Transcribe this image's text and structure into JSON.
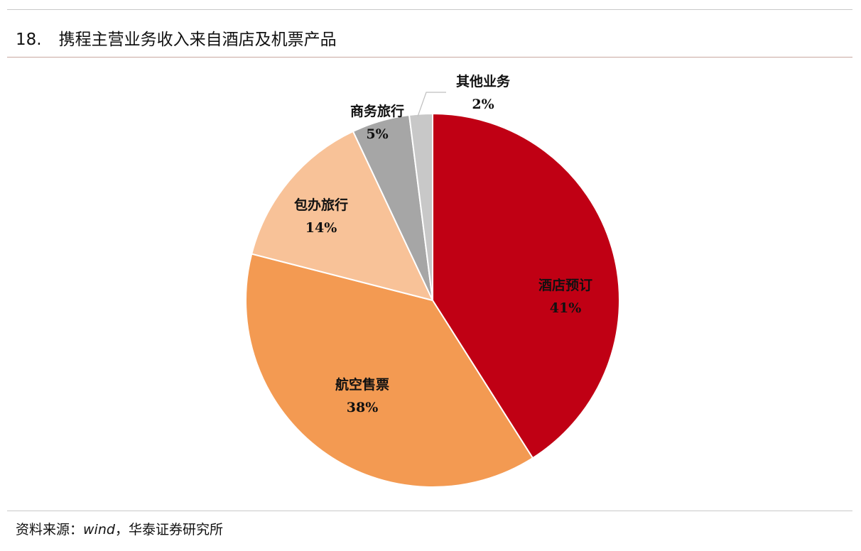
{
  "figure": {
    "number": "18.",
    "title": "携程主营业务收入来自酒店及机票产品"
  },
  "source": {
    "prefix": "资料来源：",
    "italic": "wind",
    "suffix": "，华泰证券研究所"
  },
  "chart_data": {
    "type": "pie",
    "slices": [
      {
        "label": "酒店预订",
        "value": 41,
        "pct_label": "41%",
        "color": "#c00014"
      },
      {
        "label": "航空售票",
        "value": 38,
        "pct_label": "38%",
        "color": "#f39a52"
      },
      {
        "label": "包办旅行",
        "value": 14,
        "pct_label": "14%",
        "color": "#f8c298"
      },
      {
        "label": "商务旅行",
        "value": 5,
        "pct_label": "5%",
        "color": "#a6a6a6"
      },
      {
        "label": "其他业务",
        "value": 2,
        "pct_label": "2%",
        "color": "#c8c8c8"
      }
    ],
    "start_angle_deg": 0,
    "direction": "clockwise",
    "legend": "none"
  }
}
